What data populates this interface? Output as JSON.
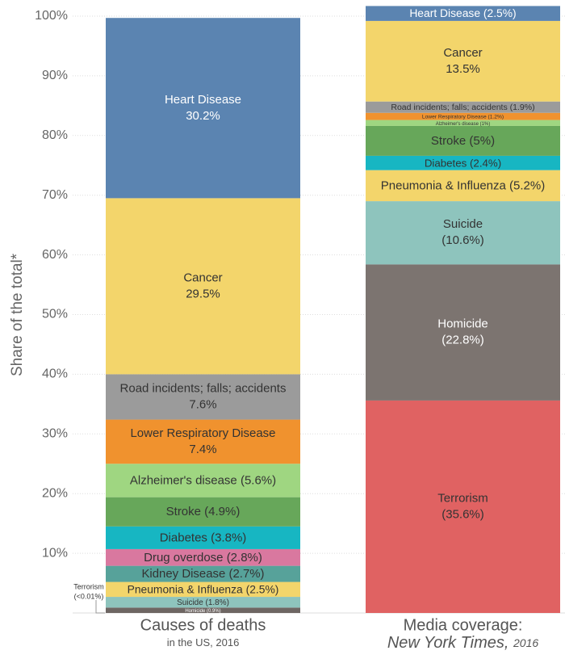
{
  "chart_data": {
    "type": "stacked-bar",
    "y_label": "Share of the total*",
    "ylim": [
      0,
      100
    ],
    "yticks": [
      {
        "value": 10,
        "label": "10%"
      },
      {
        "value": 20,
        "label": "20%"
      },
      {
        "value": 30,
        "label": "30%"
      },
      {
        "value": 40,
        "label": "40%"
      },
      {
        "value": 50,
        "label": "50%"
      },
      {
        "value": 60,
        "label": "60%"
      },
      {
        "value": 70,
        "label": "70%"
      },
      {
        "value": 80,
        "label": "80%"
      },
      {
        "value": 90,
        "label": "90%"
      },
      {
        "value": 100,
        "label": "100%"
      }
    ],
    "grid": true,
    "bars": [
      {
        "name": "Causes of deaths",
        "subtitle": "in the US, 2016",
        "segments": [
          {
            "name": "Terrorism",
            "value": 0,
            "value_label": "(<0.01%)",
            "color": "#e06262"
          },
          {
            "name": "Homicide",
            "value": 0.9,
            "value_label": "(0.9%)",
            "color": "#6e6663"
          },
          {
            "name": "Suicide",
            "value": 1.8,
            "value_label": "(1.8%)",
            "color": "#8ec4bd"
          },
          {
            "name": "Pneumonia & Influenza",
            "value": 2.5,
            "value_label": "(2.5%)",
            "color": "#f3d56b"
          },
          {
            "name": "Kidney Disease",
            "value": 2.7,
            "value_label": "(2.7%)",
            "color": "#57a29a"
          },
          {
            "name": "Drug overdose",
            "value": 2.8,
            "value_label": "(2.8%)",
            "color": "#d9789f"
          },
          {
            "name": "Diabetes",
            "value": 3.8,
            "value_label": "(3.8%)",
            "color": "#17b6c2"
          },
          {
            "name": "Stroke",
            "value": 4.9,
            "value_label": "(4.9%)",
            "color": "#67a75a"
          },
          {
            "name": "Alzheimer's disease",
            "value": 5.6,
            "value_label": "(5.6%)",
            "color": "#9fd681"
          },
          {
            "name": "Lower Respiratory Disease",
            "value": 7.4,
            "value_label": "7.4%",
            "color": "#f0922e"
          },
          {
            "name": "Road incidents; falls; accidents",
            "value": 7.6,
            "value_label": "7.6%",
            "color": "#9b9b9b"
          },
          {
            "name": "Cancer",
            "value": 29.5,
            "value_label": "29.5%",
            "color": "#f3d56b"
          },
          {
            "name": "Heart Disease",
            "value": 30.2,
            "value_label": "30.2%",
            "color": "#5b84b1"
          }
        ]
      },
      {
        "name": "Media coverage:",
        "subtitle": "New York Times,",
        "subtitle_note": "2016",
        "segments": [
          {
            "name": "Terrorism",
            "value": 35.6,
            "value_label": "(35.6%)",
            "color": "#e06262"
          },
          {
            "name": "Homicide",
            "value": 22.8,
            "value_label": "(22.8%)",
            "color": "#7c7470"
          },
          {
            "name": "Suicide",
            "value": 10.6,
            "value_label": "(10.6%)",
            "color": "#8ec4bd"
          },
          {
            "name": "Pneumonia & Influenza",
            "value": 5.2,
            "value_label": "(5.2%)",
            "color": "#f3d56b"
          },
          {
            "name": "Diabetes",
            "value": 2.4,
            "value_label": "(2.4%)",
            "color": "#17b6c2"
          },
          {
            "name": "Stroke",
            "value": 5,
            "value_label": "(5%)",
            "color": "#67a75a"
          },
          {
            "name": "Alzheimer's disease",
            "value": 1,
            "value_label": "(1%)",
            "color": "#9fd681"
          },
          {
            "name": "Lower Respiratory Disease",
            "value": 1.2,
            "value_label": "(1.2%)",
            "color": "#f0922e"
          },
          {
            "name": "Road incidents; falls; accidents",
            "value": 1.9,
            "value_label": "(1.9%)",
            "color": "#9b9b9b"
          },
          {
            "name": "Cancer",
            "value": 13.5,
            "value_label": "13.5%",
            "color": "#f3d56b"
          },
          {
            "name": "Heart Disease",
            "value": 2.5,
            "value_label": "(2.5%)",
            "color": "#5b84b1"
          }
        ]
      }
    ]
  }
}
